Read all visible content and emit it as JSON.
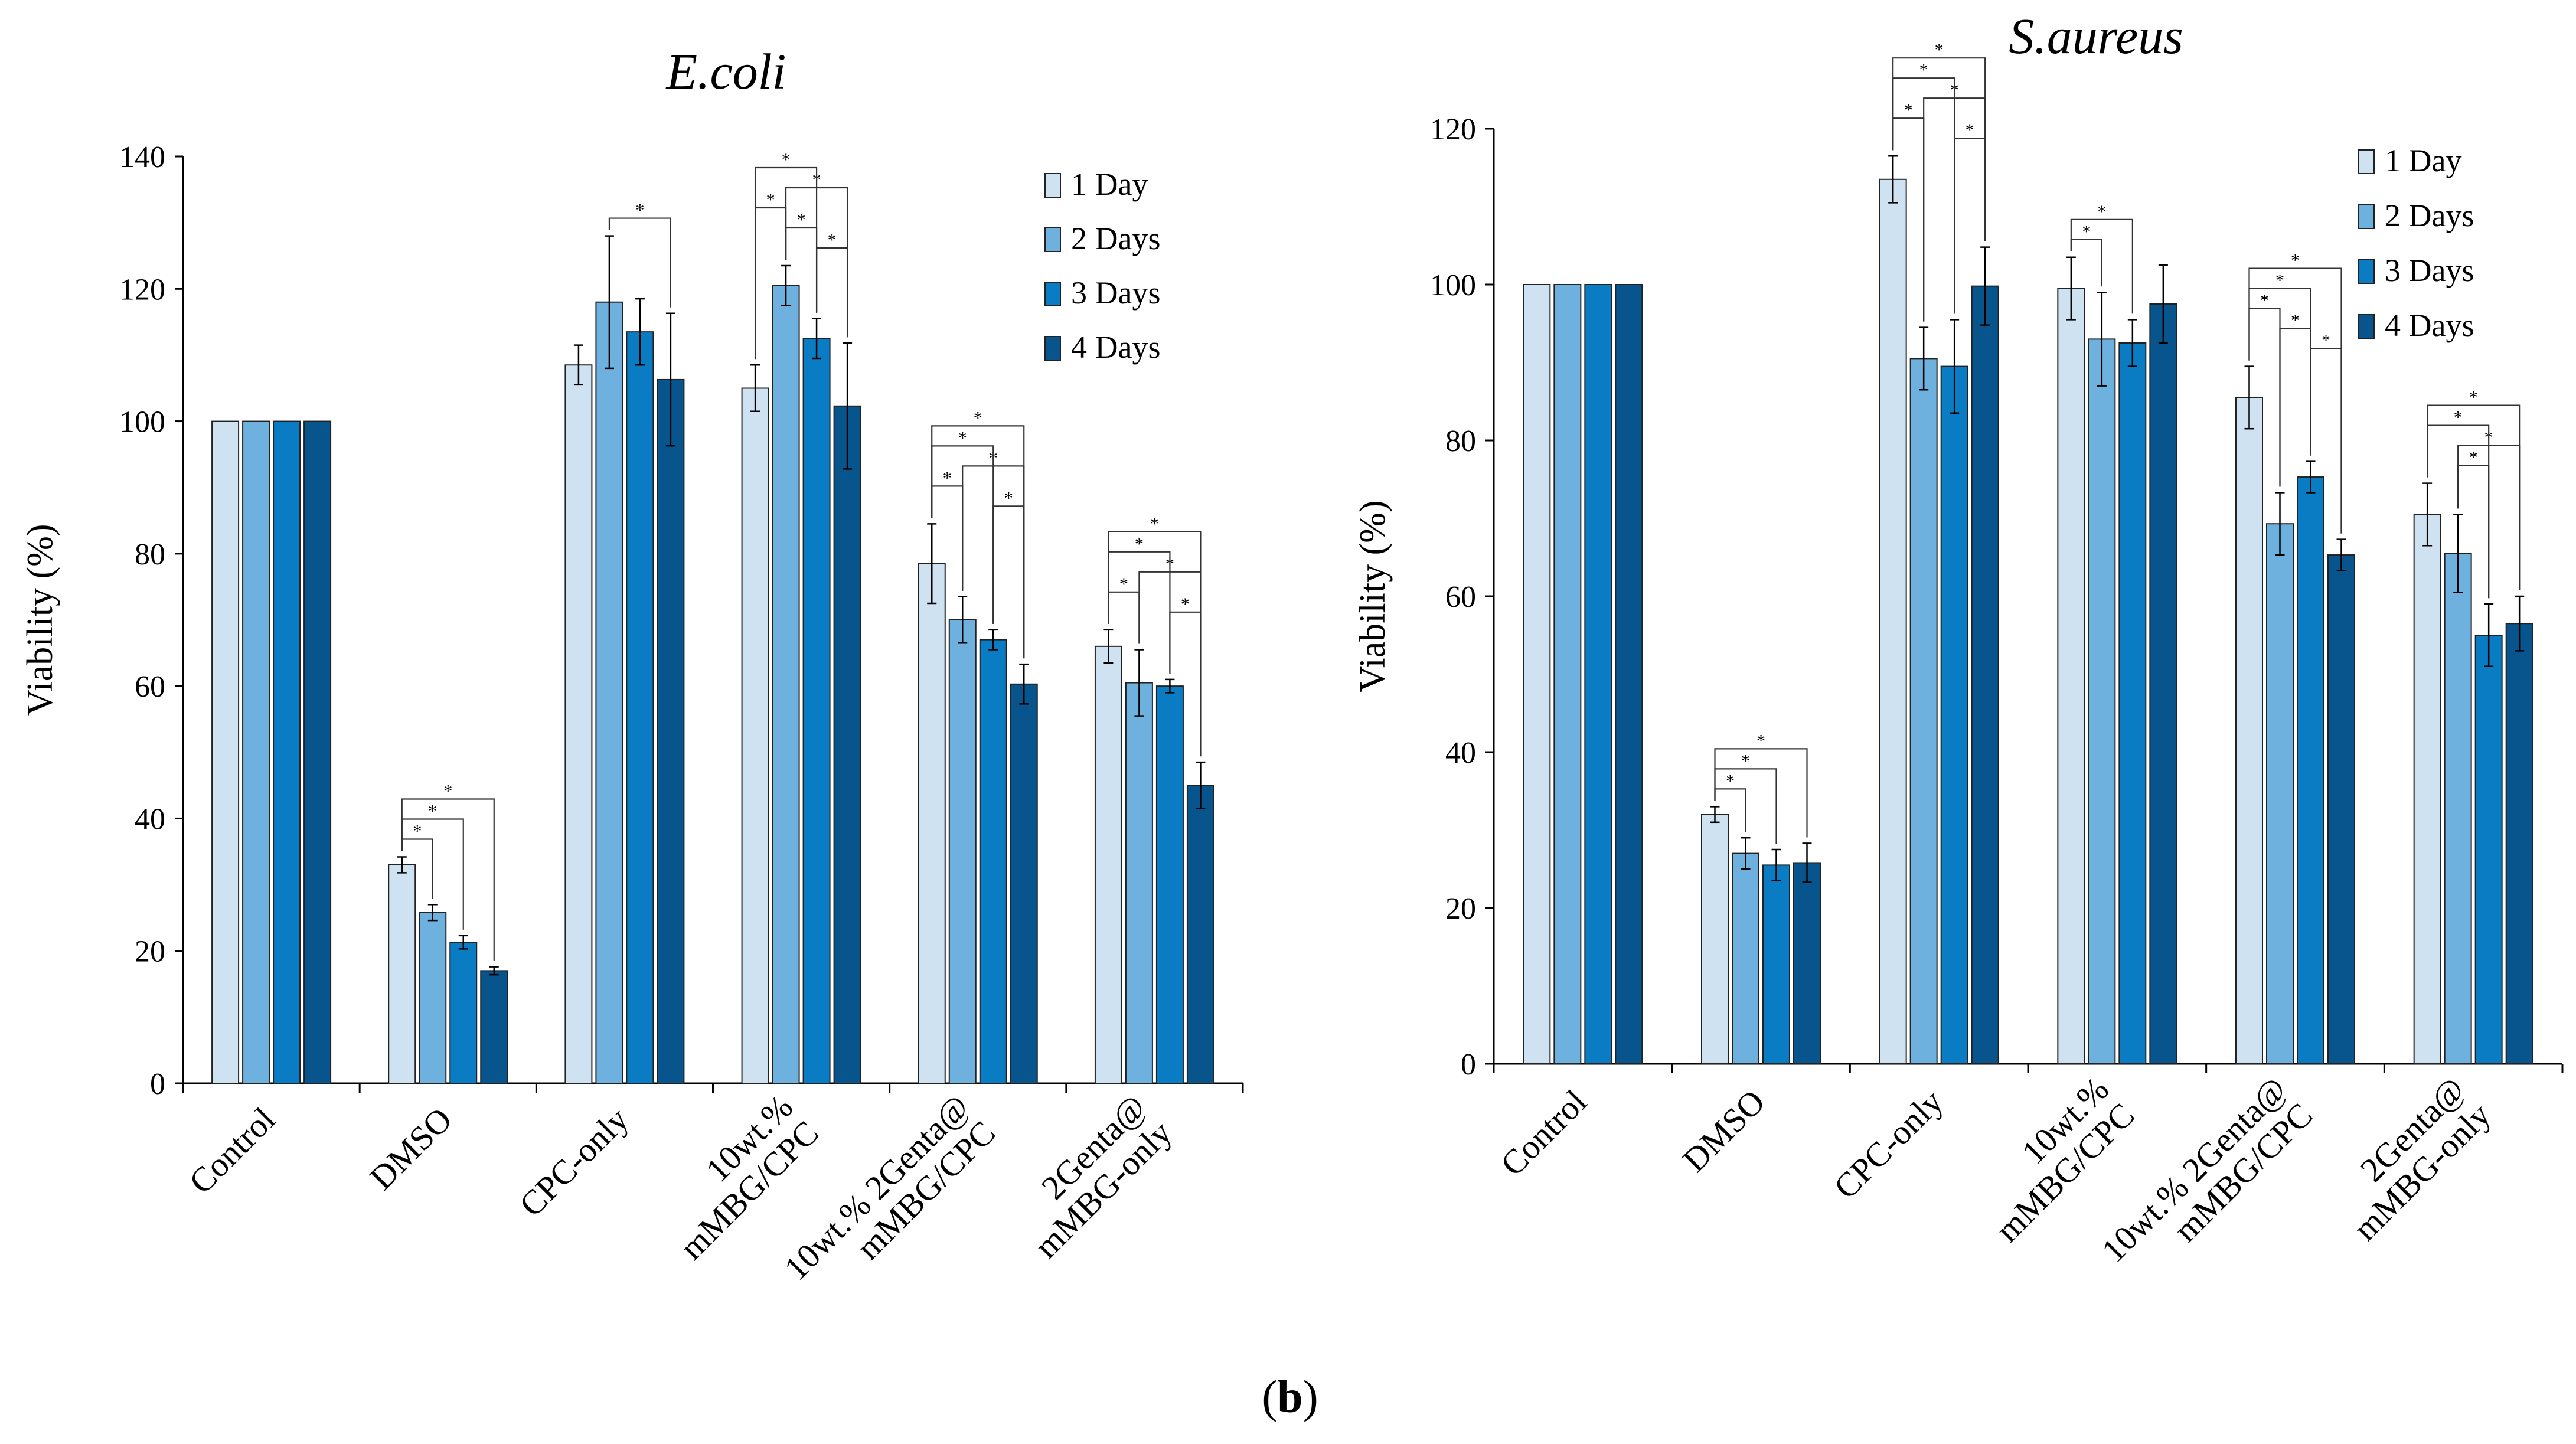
{
  "figure": {
    "panel_label_open": "(",
    "panel_label_letter": "b",
    "panel_label_close": ")",
    "colors": {
      "1 Day": "#cfe2f2",
      "2 Days": "#6eb0de",
      "3 Days": "#0a7cc3",
      "4 Days": "#07558c"
    }
  },
  "chart_data": [
    {
      "type": "bar",
      "title": "E.coli",
      "xlabel": "",
      "ylabel": "Viability (%)",
      "ylim": [
        0,
        140
      ],
      "yticks": [
        0,
        20,
        40,
        60,
        80,
        100,
        120,
        140
      ],
      "grid": false,
      "legend_position": "top-right",
      "categories": [
        [
          "Control"
        ],
        [
          "DMSO"
        ],
        [
          "CPC-only"
        ],
        [
          "10wt.%",
          "mMBG/CPC"
        ],
        [
          "10wt.% 2Genta@",
          "mMBG/CPC"
        ],
        [
          "2Genta@",
          "mMBG-only"
        ]
      ],
      "series": [
        {
          "name": "1 Day",
          "values": [
            100,
            33,
            108.5,
            105,
            78.5,
            66
          ],
          "errors": [
            0,
            1.2,
            3,
            3.5,
            6,
            2.5
          ]
        },
        {
          "name": "2 Days",
          "values": [
            100,
            25.8,
            118,
            120.5,
            70,
            60.5
          ],
          "errors": [
            0,
            1.2,
            10,
            3,
            3.5,
            5
          ]
        },
        {
          "name": "3 Days",
          "values": [
            100,
            21.3,
            113.5,
            112.5,
            67,
            60
          ],
          "errors": [
            0,
            1.0,
            5,
            3,
            1.5,
            1
          ]
        },
        {
          "name": "4 Days",
          "values": [
            100,
            17,
            106.3,
            102.3,
            60.3,
            45
          ],
          "errors": [
            0,
            0.6,
            10,
            9.5,
            3,
            3.5
          ]
        }
      ],
      "significance": [
        {
          "group": 1,
          "from": "1 Day",
          "to": "2 Days",
          "label": "*"
        },
        {
          "group": 1,
          "from": "1 Day",
          "to": "3 Days",
          "label": "*"
        },
        {
          "group": 1,
          "from": "1 Day",
          "to": "4 Days",
          "label": "*"
        },
        {
          "group": 2,
          "from": "2 Days",
          "to": "4 Days",
          "label": "*"
        },
        {
          "group": 3,
          "from": "1 Day",
          "to": "2 Days",
          "label": "*"
        },
        {
          "group": 3,
          "from": "1 Day",
          "to": "3 Days",
          "label": "*"
        },
        {
          "group": 3,
          "from": "2 Days",
          "to": "3 Days",
          "label": "*"
        },
        {
          "group": 3,
          "from": "2 Days",
          "to": "4 Days",
          "label": "*"
        },
        {
          "group": 3,
          "from": "3 Days",
          "to": "4 Days",
          "label": "*"
        },
        {
          "group": 4,
          "from": "1 Day",
          "to": "2 Days",
          "label": "*"
        },
        {
          "group": 4,
          "from": "1 Day",
          "to": "3 Days",
          "label": "*"
        },
        {
          "group": 4,
          "from": "1 Day",
          "to": "4 Days",
          "label": "*"
        },
        {
          "group": 4,
          "from": "2 Days",
          "to": "4 Days",
          "label": "*"
        },
        {
          "group": 4,
          "from": "3 Days",
          "to": "4 Days",
          "label": "*"
        },
        {
          "group": 5,
          "from": "1 Day",
          "to": "2 Days",
          "label": "*"
        },
        {
          "group": 5,
          "from": "1 Day",
          "to": "3 Days",
          "label": "*"
        },
        {
          "group": 5,
          "from": "1 Day",
          "to": "4 Days",
          "label": "*"
        },
        {
          "group": 5,
          "from": "2 Days",
          "to": "4 Days",
          "label": "*"
        },
        {
          "group": 5,
          "from": "3 Days",
          "to": "4 Days",
          "label": "*"
        }
      ]
    },
    {
      "type": "bar",
      "title": "S.aureus",
      "xlabel": "",
      "ylabel": "Viability (%)",
      "ylim": [
        0,
        120
      ],
      "yticks": [
        0,
        20,
        40,
        60,
        80,
        100,
        120
      ],
      "grid": false,
      "legend_position": "top-right",
      "categories": [
        [
          "Control"
        ],
        [
          "DMSO"
        ],
        [
          "CPC-only"
        ],
        [
          "10wt.%",
          "mMBG/CPC"
        ],
        [
          "10wt.% 2Genta@",
          "mMBG/CPC"
        ],
        [
          "2Genta@",
          "mMBG-only"
        ]
      ],
      "series": [
        {
          "name": "1 Day",
          "values": [
            100,
            32,
            113.5,
            99.5,
            85.5,
            70.5
          ],
          "errors": [
            0,
            1,
            3,
            4,
            4,
            4
          ]
        },
        {
          "name": "2 Days",
          "values": [
            100,
            27,
            90.5,
            93,
            69.3,
            65.5
          ],
          "errors": [
            0,
            2,
            4,
            6,
            4,
            5
          ]
        },
        {
          "name": "3 Days",
          "values": [
            100,
            25.5,
            89.5,
            92.5,
            75.3,
            55
          ],
          "errors": [
            0,
            2,
            6,
            3,
            2,
            4
          ]
        },
        {
          "name": "4 Days",
          "values": [
            100,
            25.8,
            99.8,
            97.5,
            65.3,
            56.5
          ],
          "errors": [
            0,
            2.5,
            5,
            5,
            2,
            3.5
          ]
        }
      ],
      "significance": [
        {
          "group": 1,
          "from": "1 Day",
          "to": "2 Days",
          "label": "*"
        },
        {
          "group": 1,
          "from": "1 Day",
          "to": "3 Days",
          "label": "*"
        },
        {
          "group": 1,
          "from": "1 Day",
          "to": "4 Days",
          "label": "*"
        },
        {
          "group": 2,
          "from": "1 Day",
          "to": "2 Days",
          "label": "*"
        },
        {
          "group": 2,
          "from": "1 Day",
          "to": "3 Days",
          "label": "*"
        },
        {
          "group": 2,
          "from": "1 Day",
          "to": "4 Days",
          "label": "*"
        },
        {
          "group": 2,
          "from": "2 Days",
          "to": "4 Days",
          "label": "*"
        },
        {
          "group": 2,
          "from": "3 Days",
          "to": "4 Days",
          "label": "*"
        },
        {
          "group": 3,
          "from": "1 Day",
          "to": "2 Days",
          "label": "*"
        },
        {
          "group": 3,
          "from": "1 Day",
          "to": "3 Days",
          "label": "*"
        },
        {
          "group": 4,
          "from": "1 Day",
          "to": "2 Days",
          "label": "*"
        },
        {
          "group": 4,
          "from": "1 Day",
          "to": "3 Days",
          "label": "*"
        },
        {
          "group": 4,
          "from": "1 Day",
          "to": "4 Days",
          "label": "*"
        },
        {
          "group": 4,
          "from": "2 Days",
          "to": "3 Days",
          "label": "*"
        },
        {
          "group": 4,
          "from": "3 Days",
          "to": "4 Days",
          "label": "*"
        },
        {
          "group": 5,
          "from": "1 Day",
          "to": "3 Days",
          "label": "*"
        },
        {
          "group": 5,
          "from": "1 Day",
          "to": "4 Days",
          "label": "*"
        },
        {
          "group": 5,
          "from": "2 Days",
          "to": "3 Days",
          "label": "*"
        },
        {
          "group": 5,
          "from": "2 Days",
          "to": "4 Days",
          "label": "*"
        }
      ]
    }
  ]
}
